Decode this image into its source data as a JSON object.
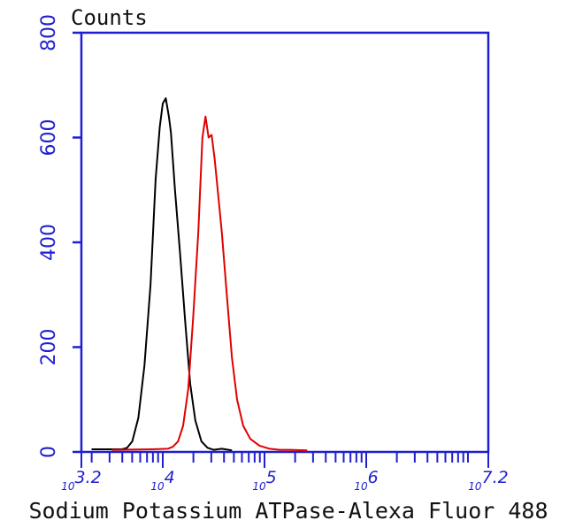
{
  "chart_data": {
    "type": "line",
    "title": "",
    "ylabel": "Counts",
    "xlabel": "Sodium Potassium ATPase-Alexa Fluor 488",
    "x_scale": "log10",
    "xlim_exponent": [
      3.2,
      7.2
    ],
    "ylim": [
      0,
      800
    ],
    "y_ticks": [
      0,
      200,
      400,
      600,
      800
    ],
    "x_tick_labels": [
      {
        "base": "10",
        "exp": "3.2",
        "exponent_value": 3.2
      },
      {
        "base": "10",
        "exp": "4",
        "exponent_value": 4
      },
      {
        "base": "10",
        "exp": "5",
        "exponent_value": 5
      },
      {
        "base": "10",
        "exp": "6",
        "exponent_value": 6
      },
      {
        "base": "10",
        "exp": "7.2",
        "exponent_value": 7.2
      }
    ],
    "grid": false,
    "legend": "none",
    "axis_color": "#1f1fd0",
    "series": [
      {
        "color": "#000000",
        "x_exponent": [
          3.3,
          3.45,
          3.6,
          3.65,
          3.7,
          3.76,
          3.82,
          3.88,
          3.93,
          3.97,
          4.0,
          4.03,
          4.06,
          4.08,
          4.12,
          4.17,
          4.22,
          4.27,
          4.32,
          4.38,
          4.44,
          4.5,
          4.58,
          4.68
        ],
        "y": [
          5,
          5,
          5,
          8,
          20,
          65,
          165,
          320,
          520,
          620,
          665,
          675,
          640,
          610,
          500,
          380,
          250,
          130,
          60,
          20,
          8,
          4,
          6,
          3
        ]
      },
      {
        "color": "#e00000",
        "x_exponent": [
          3.5,
          3.9,
          4.05,
          4.1,
          4.15,
          4.2,
          4.25,
          4.3,
          4.35,
          4.39,
          4.42,
          4.45,
          4.48,
          4.51,
          4.54,
          4.58,
          4.63,
          4.68,
          4.73,
          4.79,
          4.86,
          4.95,
          5.05,
          5.15,
          5.25,
          5.42
        ],
        "y": [
          4,
          5,
          6,
          10,
          20,
          50,
          120,
          260,
          420,
          600,
          640,
          600,
          605,
          560,
          500,
          420,
          300,
          180,
          100,
          50,
          25,
          12,
          6,
          4,
          4,
          3
        ]
      }
    ]
  }
}
